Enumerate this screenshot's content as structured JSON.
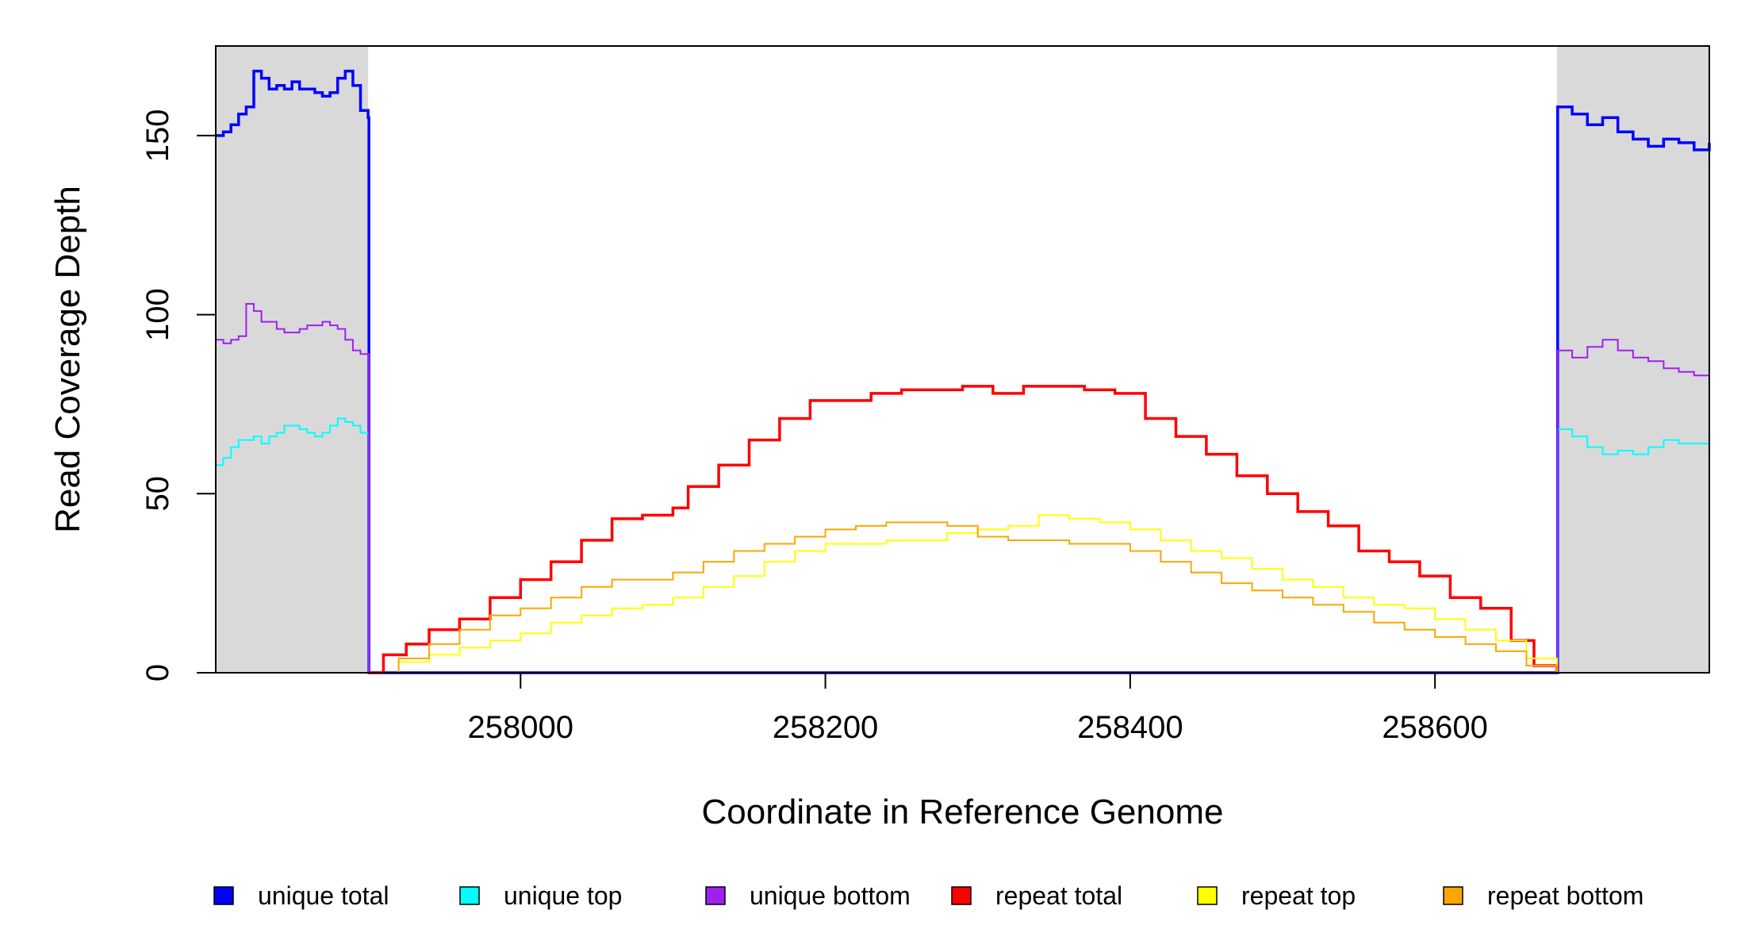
{
  "chart_data": {
    "type": "line",
    "title": "",
    "xlabel": "Coordinate in Reference Genome",
    "ylabel": "Read Coverage Depth",
    "xlim": [
      257800,
      258780
    ],
    "ylim": [
      0,
      175
    ],
    "x_ticks": [
      258000,
      258200,
      258400,
      258600
    ],
    "x_tick_labels": [
      "258000",
      "258200",
      "258400",
      "258600"
    ],
    "y_ticks": [
      0,
      50,
      100,
      150
    ],
    "y_tick_labels": [
      "0",
      "50",
      "100",
      "150"
    ],
    "grid": false,
    "legend_position": "bottom",
    "shaded_regions": [
      [
        257800,
        257900
      ],
      [
        258680,
        258780
      ]
    ],
    "shade_color": "#d9d9d9",
    "series": [
      {
        "name": "unique total",
        "color": "#0000ff",
        "width": 3.5,
        "points": [
          [
            257800,
            150
          ],
          [
            257805,
            151
          ],
          [
            257810,
            153
          ],
          [
            257815,
            156
          ],
          [
            257820,
            158
          ],
          [
            257825,
            168
          ],
          [
            257830,
            166
          ],
          [
            257835,
            163
          ],
          [
            257840,
            164
          ],
          [
            257845,
            163
          ],
          [
            257850,
            165
          ],
          [
            257855,
            163
          ],
          [
            257860,
            163
          ],
          [
            257865,
            162
          ],
          [
            257870,
            161
          ],
          [
            257875,
            162
          ],
          [
            257880,
            166
          ],
          [
            257885,
            168
          ],
          [
            257890,
            164
          ],
          [
            257895,
            157
          ],
          [
            257900,
            155
          ],
          [
            257900.5,
            0
          ],
          [
            258680,
            0
          ],
          [
            258680.5,
            158
          ],
          [
            258690,
            156
          ],
          [
            258700,
            153
          ],
          [
            258710,
            155
          ],
          [
            258720,
            151
          ],
          [
            258730,
            149
          ],
          [
            258740,
            147
          ],
          [
            258750,
            149
          ],
          [
            258760,
            148
          ],
          [
            258770,
            146
          ],
          [
            258780,
            148
          ]
        ]
      },
      {
        "name": "unique top",
        "color": "#00ffff",
        "width": 2,
        "points": [
          [
            257800,
            58
          ],
          [
            257805,
            60
          ],
          [
            257810,
            63
          ],
          [
            257815,
            65
          ],
          [
            257820,
            65
          ],
          [
            257825,
            66
          ],
          [
            257830,
            64
          ],
          [
            257835,
            66
          ],
          [
            257840,
            67
          ],
          [
            257845,
            69
          ],
          [
            257850,
            69
          ],
          [
            257855,
            68
          ],
          [
            257860,
            67
          ],
          [
            257865,
            66
          ],
          [
            257870,
            67
          ],
          [
            257875,
            69
          ],
          [
            257880,
            71
          ],
          [
            257885,
            70
          ],
          [
            257890,
            69
          ],
          [
            257895,
            67
          ],
          [
            257900,
            67
          ],
          [
            257900.5,
            0
          ],
          [
            258680,
            0
          ],
          [
            258680.5,
            68
          ],
          [
            258690,
            66
          ],
          [
            258700,
            63
          ],
          [
            258710,
            61
          ],
          [
            258720,
            62
          ],
          [
            258730,
            61
          ],
          [
            258740,
            63
          ],
          [
            258750,
            65
          ],
          [
            258760,
            64
          ],
          [
            258770,
            64
          ],
          [
            258780,
            68
          ]
        ]
      },
      {
        "name": "unique bottom",
        "color": "#a020f0",
        "width": 2,
        "points": [
          [
            257800,
            93
          ],
          [
            257805,
            92
          ],
          [
            257810,
            93
          ],
          [
            257815,
            94
          ],
          [
            257820,
            103
          ],
          [
            257825,
            101
          ],
          [
            257830,
            98
          ],
          [
            257835,
            98
          ],
          [
            257840,
            96
          ],
          [
            257845,
            95
          ],
          [
            257850,
            95
          ],
          [
            257855,
            96
          ],
          [
            257860,
            97
          ],
          [
            257865,
            97
          ],
          [
            257870,
            98
          ],
          [
            257875,
            97
          ],
          [
            257880,
            96
          ],
          [
            257885,
            93
          ],
          [
            257890,
            90
          ],
          [
            257895,
            89
          ],
          [
            257900,
            89
          ],
          [
            257900.5,
            0
          ],
          [
            258680,
            0
          ],
          [
            258680.5,
            90
          ],
          [
            258690,
            88
          ],
          [
            258700,
            91
          ],
          [
            258710,
            93
          ],
          [
            258720,
            90
          ],
          [
            258730,
            88
          ],
          [
            258740,
            87
          ],
          [
            258750,
            85
          ],
          [
            258760,
            84
          ],
          [
            258770,
            83
          ],
          [
            258780,
            82
          ]
        ]
      },
      {
        "name": "repeat total",
        "color": "#ff0000",
        "width": 3.5,
        "points": [
          [
            257900,
            0
          ],
          [
            257910,
            5
          ],
          [
            257925,
            8
          ],
          [
            257940,
            12
          ],
          [
            257960,
            15
          ],
          [
            257980,
            21
          ],
          [
            258000,
            26
          ],
          [
            258020,
            31
          ],
          [
            258040,
            37
          ],
          [
            258060,
            43
          ],
          [
            258080,
            44
          ],
          [
            258100,
            46
          ],
          [
            258110,
            52
          ],
          [
            258130,
            58
          ],
          [
            258150,
            65
          ],
          [
            258170,
            71
          ],
          [
            258190,
            76
          ],
          [
            258210,
            76
          ],
          [
            258230,
            78
          ],
          [
            258250,
            79
          ],
          [
            258270,
            79
          ],
          [
            258290,
            80
          ],
          [
            258310,
            78
          ],
          [
            258330,
            80
          ],
          [
            258350,
            80
          ],
          [
            258370,
            79
          ],
          [
            258390,
            78
          ],
          [
            258410,
            71
          ],
          [
            258430,
            66
          ],
          [
            258450,
            61
          ],
          [
            258470,
            55
          ],
          [
            258490,
            50
          ],
          [
            258510,
            45
          ],
          [
            258530,
            41
          ],
          [
            258550,
            34
          ],
          [
            258570,
            31
          ],
          [
            258590,
            27
          ],
          [
            258610,
            21
          ],
          [
            258630,
            18
          ],
          [
            258650,
            9
          ],
          [
            258665,
            2
          ],
          [
            258680,
            0
          ]
        ]
      },
      {
        "name": "repeat top",
        "color": "#ffff00",
        "width": 2,
        "points": [
          [
            257900,
            0
          ],
          [
            257920,
            3
          ],
          [
            257940,
            5
          ],
          [
            257960,
            7
          ],
          [
            257980,
            9
          ],
          [
            258000,
            11
          ],
          [
            258020,
            14
          ],
          [
            258040,
            16
          ],
          [
            258060,
            18
          ],
          [
            258080,
            19
          ],
          [
            258100,
            21
          ],
          [
            258120,
            24
          ],
          [
            258140,
            27
          ],
          [
            258160,
            31
          ],
          [
            258180,
            34
          ],
          [
            258200,
            36
          ],
          [
            258220,
            36
          ],
          [
            258240,
            37
          ],
          [
            258260,
            37
          ],
          [
            258280,
            39
          ],
          [
            258300,
            40
          ],
          [
            258320,
            41
          ],
          [
            258340,
            44
          ],
          [
            258360,
            43
          ],
          [
            258380,
            42
          ],
          [
            258400,
            40
          ],
          [
            258420,
            37
          ],
          [
            258440,
            34
          ],
          [
            258460,
            32
          ],
          [
            258480,
            29
          ],
          [
            258500,
            26
          ],
          [
            258520,
            24
          ],
          [
            258540,
            21
          ],
          [
            258560,
            19
          ],
          [
            258580,
            18
          ],
          [
            258600,
            15
          ],
          [
            258620,
            12
          ],
          [
            258640,
            9
          ],
          [
            258660,
            4
          ],
          [
            258680,
            0
          ]
        ]
      },
      {
        "name": "repeat bottom",
        "color": "#ffa500",
        "width": 2,
        "points": [
          [
            257900,
            0
          ],
          [
            257920,
            4
          ],
          [
            257940,
            8
          ],
          [
            257960,
            12
          ],
          [
            257980,
            16
          ],
          [
            258000,
            18
          ],
          [
            258020,
            21
          ],
          [
            258040,
            24
          ],
          [
            258060,
            26
          ],
          [
            258080,
            26
          ],
          [
            258100,
            28
          ],
          [
            258120,
            31
          ],
          [
            258140,
            34
          ],
          [
            258160,
            36
          ],
          [
            258180,
            38
          ],
          [
            258200,
            40
          ],
          [
            258220,
            41
          ],
          [
            258240,
            42
          ],
          [
            258260,
            42
          ],
          [
            258280,
            41
          ],
          [
            258300,
            38
          ],
          [
            258320,
            37
          ],
          [
            258340,
            37
          ],
          [
            258360,
            36
          ],
          [
            258380,
            36
          ],
          [
            258400,
            34
          ],
          [
            258420,
            31
          ],
          [
            258440,
            28
          ],
          [
            258460,
            25
          ],
          [
            258480,
            23
          ],
          [
            258500,
            21
          ],
          [
            258520,
            19
          ],
          [
            258540,
            17
          ],
          [
            258560,
            14
          ],
          [
            258580,
            12
          ],
          [
            258600,
            10
          ],
          [
            258620,
            8
          ],
          [
            258640,
            6
          ],
          [
            258660,
            2
          ],
          [
            258680,
            0
          ]
        ]
      }
    ]
  }
}
